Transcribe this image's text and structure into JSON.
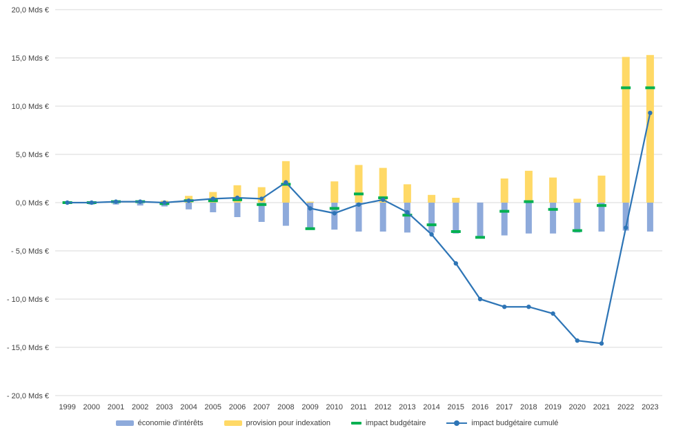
{
  "chart_data": {
    "type": "combo",
    "title": "",
    "xlabel": "",
    "ylabel": "",
    "ylim": [
      -20,
      20
    ],
    "grid": true,
    "legend_position": "bottom",
    "categories": [
      "1999",
      "2000",
      "2001",
      "2002",
      "2003",
      "2004",
      "2005",
      "2006",
      "2007",
      "2008",
      "2009",
      "2010",
      "2011",
      "2012",
      "2013",
      "2014",
      "2015",
      "2016",
      "2017",
      "2018",
      "2019",
      "2020",
      "2021",
      "2022",
      "2023"
    ],
    "y_ticks": {
      "values": [
        20,
        15,
        10,
        5,
        0,
        -5,
        -10,
        -15,
        -20
      ],
      "labels": [
        "20,0 Mds €",
        "15,0 Mds €",
        "10,0 Mds €",
        "5,0 Mds €",
        "0,0 Mds €",
        "- 5,0 Mds €",
        "- 10,0 Mds €",
        "- 15,0 Mds €",
        "- 20,0 Mds €"
      ]
    },
    "series": [
      {
        "name": "économie d'intérêts",
        "type": "bar",
        "color": "#8EAADB",
        "values": [
          -0.1,
          -0.2,
          -0.2,
          -0.3,
          -0.4,
          -0.7,
          -1.0,
          -1.5,
          -2.0,
          -2.4,
          -2.6,
          -2.8,
          -3.0,
          -3.0,
          -3.1,
          -3.1,
          -3.2,
          -3.6,
          -3.4,
          -3.2,
          -3.2,
          -3.1,
          -3.0,
          -2.9,
          -3.0
        ]
      },
      {
        "name": "provision pour indexation",
        "type": "bar",
        "color": "#FFD966",
        "values": [
          0.1,
          0.1,
          0.2,
          0.2,
          0.2,
          0.7,
          1.1,
          1.8,
          1.6,
          4.3,
          0.1,
          2.2,
          3.9,
          3.6,
          1.9,
          0.8,
          0.5,
          0.0,
          2.5,
          3.3,
          2.6,
          0.4,
          2.8,
          15.1,
          15.3
        ]
      },
      {
        "name": "impact budgétaire",
        "type": "dash",
        "color": "#00B050",
        "values": [
          0.0,
          0.0,
          0.1,
          0.1,
          -0.1,
          0.2,
          0.2,
          0.3,
          -0.2,
          1.9,
          -2.7,
          -0.6,
          0.9,
          0.5,
          -1.3,
          -2.3,
          -3.0,
          -3.6,
          -0.9,
          0.1,
          -0.7,
          -2.9,
          -0.3,
          11.9,
          11.9
        ]
      },
      {
        "name": "impact budgétaire cumulé",
        "type": "line",
        "color": "#2E75B6",
        "values": [
          0.0,
          0.0,
          0.1,
          0.1,
          0.0,
          0.2,
          0.4,
          0.5,
          0.4,
          2.1,
          -0.6,
          -1.1,
          -0.2,
          0.3,
          -1.0,
          -3.3,
          -6.3,
          -10.0,
          -10.8,
          -10.8,
          -11.5,
          -14.3,
          -14.6,
          -2.6,
          9.3
        ]
      }
    ],
    "colors": {
      "gridline": "#D9D9D9",
      "tick_text": "#404040"
    }
  }
}
